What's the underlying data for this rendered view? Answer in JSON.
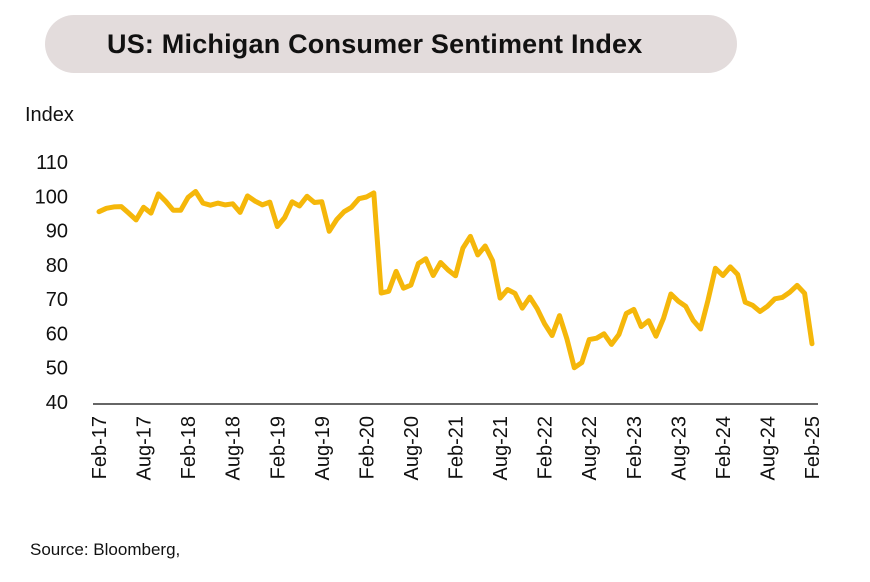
{
  "title": "US: Michigan Consumer Sentiment Index",
  "source": "Source: Bloomberg,",
  "chart_data": {
    "type": "line",
    "ylabel": "Index",
    "ylim": [
      40,
      110
    ],
    "yticks": [
      40,
      50,
      60,
      70,
      80,
      90,
      100,
      110
    ],
    "xtick_labels": [
      "Feb-17",
      "Aug-17",
      "Feb-18",
      "Aug-18",
      "Feb-19",
      "Aug-19",
      "Feb-20",
      "Aug-20",
      "Feb-21",
      "Aug-21",
      "Feb-22",
      "Aug-22",
      "Feb-23",
      "Aug-23",
      "Feb-24",
      "Aug-24",
      "Feb-25"
    ],
    "grid": false,
    "line_color": "#f5b70a",
    "series": [
      {
        "values": [
          95.5,
          96.5,
          96.9,
          97.0,
          95.1,
          93.1,
          96.8,
          95.1,
          100.7,
          98.5,
          95.9,
          95.9,
          99.7,
          101.4,
          98.0,
          97.4,
          98.0,
          97.5,
          97.8,
          95.3,
          100.1,
          98.6,
          97.5,
          98.3,
          91.2,
          93.8,
          98.4,
          97.2,
          100.0,
          98.2,
          98.4,
          89.8,
          93.2,
          95.5,
          96.8,
          99.3,
          99.8,
          101.0,
          71.8,
          72.3,
          78.1,
          73.2,
          74.1,
          80.4,
          81.8,
          76.9,
          80.7,
          78.5,
          76.8,
          84.9,
          88.3,
          82.9,
          85.5,
          81.2,
          70.3,
          72.8,
          71.7,
          67.4,
          70.6,
          67.2,
          62.8,
          59.4,
          65.2,
          58.4,
          50.0,
          51.5,
          58.2,
          58.6,
          59.9,
          56.8,
          59.7,
          65.8,
          67.0,
          62.0,
          63.7,
          59.2,
          64.4,
          71.5,
          69.4,
          67.9,
          63.8,
          61.3,
          69.7,
          79.0,
          76.9,
          79.4,
          77.2,
          69.1,
          68.2,
          66.4,
          67.9,
          70.1,
          70.5,
          72.0,
          74.0,
          71.7,
          57.0
        ]
      }
    ]
  }
}
